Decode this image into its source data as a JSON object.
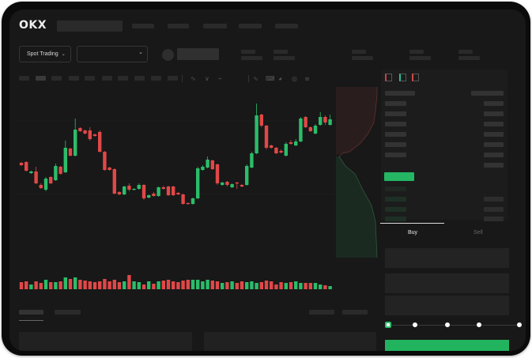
{
  "header": {
    "logo": "OKX"
  },
  "market_bar": {
    "mode_label": "Spot Trading",
    "mode_icon": "chevron-down-icon",
    "pair_icon": "chevron-down-icon"
  },
  "toolbar": {
    "icons": [
      "indicator-icon",
      "indicator-icon",
      "settings-icon",
      "line-icon",
      "pen-icon",
      "screenshot-icon",
      "target-icon",
      "fullscreen-icon"
    ]
  },
  "order_form": {
    "tabs": [
      "Buy",
      "Sell"
    ],
    "active_tab": "Buy",
    "slider_percent": 0,
    "submit_color": "#22b35e"
  },
  "colors": {
    "up": "#2bbd6a",
    "down": "#e04848",
    "background": "#181818"
  },
  "chart_data": {
    "type": "candlestick",
    "candles": [
      [
        96,
        93,
        97,
        92
      ],
      [
        97,
        86,
        98,
        85
      ],
      [
        83,
        85,
        86,
        82
      ],
      [
        85,
        70,
        91,
        69
      ],
      [
        68,
        64,
        70,
        63
      ],
      [
        62,
        76,
        78,
        60
      ],
      [
        78,
        70,
        79,
        69
      ],
      [
        74,
        92,
        95,
        73
      ],
      [
        91,
        82,
        92,
        81
      ],
      [
        84,
        115,
        124,
        83
      ],
      [
        114,
        105,
        115,
        104
      ],
      [
        105,
        138,
        152,
        104
      ],
      [
        140,
        136,
        141,
        135
      ],
      [
        137,
        133,
        138,
        132
      ],
      [
        137,
        126,
        141,
        124
      ],
      [
        132,
        130,
        133,
        129
      ],
      [
        135,
        110,
        137,
        109
      ],
      [
        110,
        87,
        111,
        86
      ],
      [
        90,
        87,
        91,
        86
      ],
      [
        88,
        57,
        89,
        56
      ],
      [
        59,
        56,
        60,
        55
      ],
      [
        56,
        66,
        67,
        55
      ],
      [
        67,
        62,
        70,
        60
      ],
      [
        62,
        63,
        64,
        61
      ],
      [
        63,
        68,
        70,
        62
      ],
      [
        68,
        51,
        69,
        49
      ],
      [
        52,
        55,
        56,
        51
      ],
      [
        57,
        54,
        59,
        53
      ],
      [
        54,
        65,
        66,
        53
      ],
      [
        65,
        63,
        67,
        62
      ],
      [
        66,
        55,
        67,
        54
      ],
      [
        66,
        55,
        67,
        54
      ],
      [
        58,
        56,
        59,
        55
      ],
      [
        56,
        44,
        57,
        43
      ],
      [
        45,
        44,
        46,
        43
      ],
      [
        44,
        51,
        52,
        43
      ],
      [
        51,
        89,
        91,
        50
      ],
      [
        87,
        91,
        93,
        86
      ],
      [
        90,
        100,
        104,
        89
      ],
      [
        99,
        88,
        100,
        87
      ],
      [
        94,
        70,
        95,
        68
      ],
      [
        68,
        71,
        72,
        67
      ],
      [
        72,
        68,
        73,
        66
      ],
      [
        65,
        69,
        70,
        64
      ],
      [
        71,
        70,
        72,
        63
      ],
      [
        68,
        66,
        69,
        65
      ],
      [
        68,
        92,
        94,
        67
      ],
      [
        90,
        108,
        110,
        89
      ],
      [
        108,
        156,
        171,
        107
      ],
      [
        157,
        143,
        158,
        141
      ],
      [
        143,
        115,
        144,
        113
      ],
      [
        118,
        115,
        119,
        114
      ],
      [
        115,
        108,
        116,
        107
      ],
      [
        111,
        109,
        113,
        108
      ],
      [
        105,
        120,
        122,
        104
      ],
      [
        122,
        120,
        125,
        119
      ],
      [
        118,
        123,
        126,
        117
      ],
      [
        123,
        152,
        154,
        122
      ],
      [
        154,
        141,
        155,
        140
      ],
      [
        141,
        136,
        142,
        135
      ],
      [
        133,
        143,
        145,
        132
      ],
      [
        144,
        154,
        160,
        143
      ],
      [
        154,
        147,
        156,
        144
      ],
      [
        144,
        151,
        157,
        143
      ]
    ],
    "volume": [
      9,
      10,
      6,
      10,
      8,
      12,
      9,
      9,
      10,
      15,
      13,
      15,
      12,
      11,
      10,
      9,
      10,
      13,
      10,
      12,
      9,
      10,
      18,
      10,
      9,
      6,
      10,
      7,
      10,
      11,
      12,
      10,
      9,
      11,
      12,
      12,
      12,
      10,
      12,
      11,
      10,
      8,
      9,
      10,
      8,
      10,
      9,
      10,
      8,
      9,
      11,
      10,
      6,
      9,
      8,
      9,
      10,
      8,
      8,
      8,
      8,
      6,
      5,
      4
    ],
    "grid": true
  }
}
